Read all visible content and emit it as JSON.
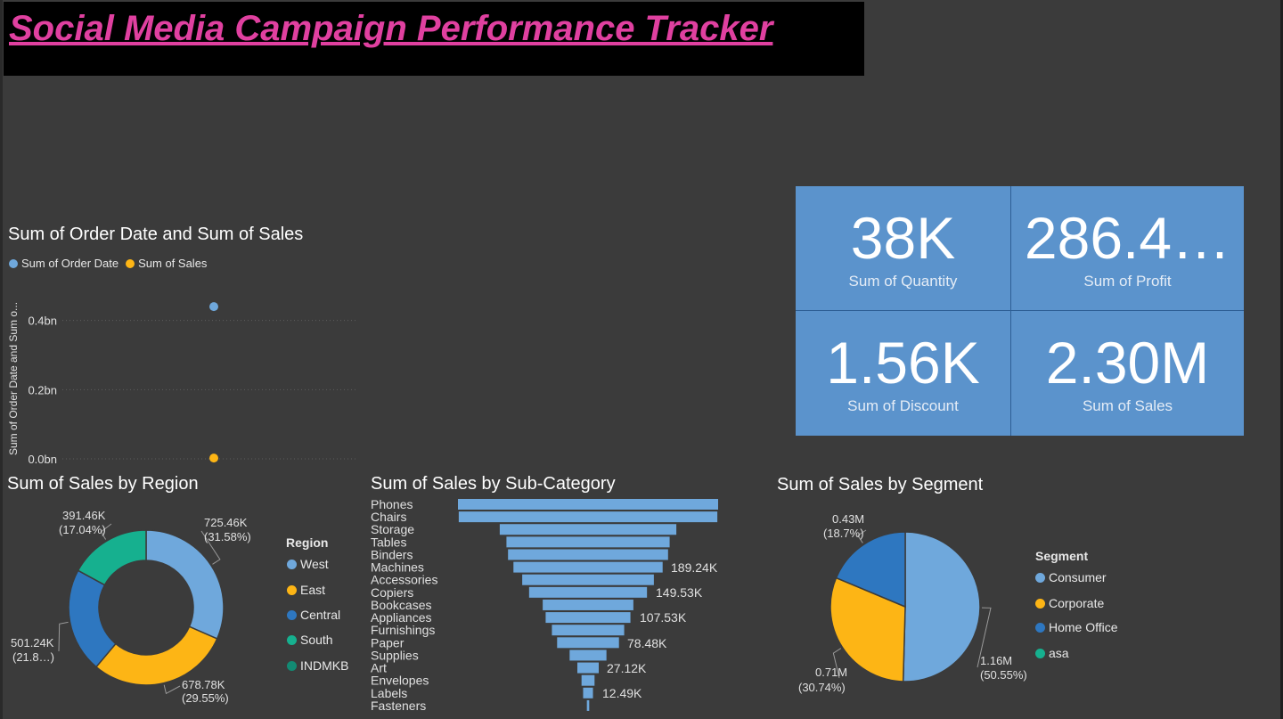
{
  "page_title": "Social Media Campaign Performance Tracker",
  "colors": {
    "blue_light": "#6fa8dc",
    "yellow": "#fdb515",
    "blue_dark": "#2e77c0",
    "teal": "#16b08f",
    "teal_dark": "#128a73",
    "kpi_bg": "#5b93cc",
    "funnel_bar": "#6fa8dc"
  },
  "scatter": {
    "title": "Sum of Order Date and Sum of Sales",
    "legend": [
      {
        "name": "Sum of Order Date",
        "color": "#6fa8dc"
      },
      {
        "name": "Sum of Sales",
        "color": "#fdb515"
      }
    ],
    "ylabel": "Sum of Order Date and Sum o..."
  },
  "kpis": [
    {
      "value": "38K",
      "label": "Sum of Quantity"
    },
    {
      "value": "286.4…",
      "label": "Sum of Profit"
    },
    {
      "value": "1.56K",
      "label": "Sum of Discount"
    },
    {
      "value": "2.30M",
      "label": "Sum of Sales"
    }
  ],
  "region": {
    "title": "Sum of Sales by Region",
    "legend_title": "Region",
    "legend": [
      {
        "name": "West",
        "color": "#6fa8dc"
      },
      {
        "name": "East",
        "color": "#fdb515"
      },
      {
        "name": "Central",
        "color": "#2e77c0"
      },
      {
        "name": "South",
        "color": "#16b08f"
      },
      {
        "name": "INDMKB",
        "color": "#128a73"
      }
    ],
    "slice_labels": [
      {
        "value": "725.46K",
        "pct": "(31.58%)"
      },
      {
        "value": "678.78K",
        "pct": "(29.55%)"
      },
      {
        "value": "501.24K",
        "pct": "(21.8…)"
      },
      {
        "value": "391.46K",
        "pct": "(17.04%)"
      }
    ]
  },
  "subcat": {
    "title": "Sum of Sales by Sub-Category",
    "data_labels": [
      "189.24K",
      "149.53K",
      "107.53K",
      "78.48K",
      "27.12K",
      "12.49K"
    ]
  },
  "segment": {
    "title": "Sum of Sales by Segment",
    "legend_title": "Segment",
    "legend": [
      {
        "name": "Consumer",
        "color": "#6fa8dc"
      },
      {
        "name": "Corporate",
        "color": "#fdb515"
      },
      {
        "name": "Home Office",
        "color": "#2e77c0"
      },
      {
        "name": "asa",
        "color": "#16b08f"
      }
    ],
    "slice_labels": [
      {
        "value": "1.16M",
        "pct": "(50.55%)"
      },
      {
        "value": "0.71M",
        "pct": "(30.74%)"
      },
      {
        "value": "0.43M",
        "pct": "(18.7%)"
      }
    ]
  },
  "chart_data": [
    {
      "type": "scatter",
      "title": "Sum of Order Date and Sum of Sales",
      "ylabel": "Sum of Order Date and Sum o...",
      "yticks": [
        "0.0bn",
        "0.2bn",
        "0.4bn"
      ],
      "ylim": [
        0,
        0.44
      ],
      "series": [
        {
          "name": "Sum of Order Date",
          "y": [
            0.44
          ]
        },
        {
          "name": "Sum of Sales",
          "y": [
            0.0023
          ]
        }
      ],
      "grid": true,
      "legend_position": "top-left"
    },
    {
      "type": "pie",
      "title": "Sum of Sales by Region",
      "donut": true,
      "categories": [
        "West",
        "East",
        "Central",
        "South"
      ],
      "values": [
        725460,
        678780,
        501240,
        391460
      ],
      "percents": [
        31.58,
        29.55,
        21.82,
        17.04
      ],
      "legend_position": "right"
    },
    {
      "type": "bar",
      "title": "Sum of Sales by Sub-Category",
      "orientation": "funnel",
      "categories": [
        "Phones",
        "Chairs",
        "Storage",
        "Tables",
        "Binders",
        "Machines",
        "Accessories",
        "Copiers",
        "Bookcases",
        "Appliances",
        "Furnishings",
        "Paper",
        "Supplies",
        "Art",
        "Envelopes",
        "Labels",
        "Fasteners"
      ],
      "values": [
        330000,
        328000,
        224000,
        207000,
        203000,
        189240,
        167000,
        149530,
        115000,
        107530,
        91700,
        78480,
        46700,
        27120,
        16500,
        12490,
        3000
      ]
    },
    {
      "type": "pie",
      "title": "Sum of Sales by Segment",
      "categories": [
        "Consumer",
        "Corporate",
        "Home Office"
      ],
      "values": [
        1160000,
        710000,
        430000
      ],
      "percents": [
        50.55,
        30.74,
        18.7
      ],
      "legend_position": "right"
    }
  ]
}
